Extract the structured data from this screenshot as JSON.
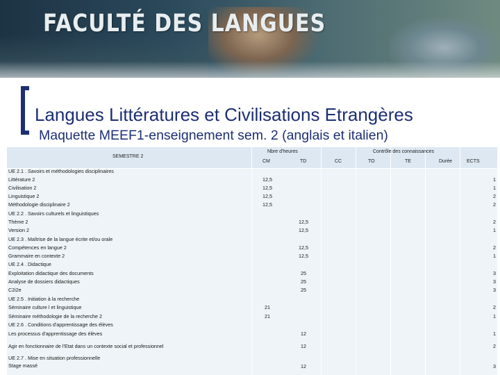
{
  "banner": {
    "logo_text": "FACULTÉ DES LANGUES"
  },
  "title": "Langues Littératures et Civilisations Etrangères",
  "subtitle": "Maquette MEEF1-enseignement sem. 2 (anglais et italien)",
  "table": {
    "headers": {
      "semestre": "SEMESTRE 2",
      "nbre_heures": "Nbre d'heures",
      "cm": "CM",
      "td": "TD",
      "cc": "CC",
      "controle": "Contrôle des connaissances",
      "ct_to": "TO",
      "ct_te": "TE",
      "duree": "Durée",
      "ects": "ECTS"
    },
    "rows": [
      {
        "label": "UE 2.1 . Savoirs et méthodologies disciplinaires",
        "cm": "",
        "td": "",
        "ects": ""
      },
      {
        "label": "Littérature 2",
        "cm": "12,5",
        "td": "",
        "ects": "1"
      },
      {
        "label": "Civilisation 2",
        "cm": "12,5",
        "td": "",
        "ects": "1"
      },
      {
        "label": "Linguistique 2",
        "cm": "12,5",
        "td": "",
        "ects": "2"
      },
      {
        "label": "Méthodologie disciplinaire 2",
        "cm": "12,5",
        "td": "",
        "ects": "2"
      },
      {
        "label": "UE 2.2 . Savoirs culturels et linguistiques",
        "cm": "",
        "td": "",
        "ects": ""
      },
      {
        "label": "Thème 2",
        "cm": "",
        "td": "12,5",
        "ects": "2"
      },
      {
        "label": "Version 2",
        "cm": "",
        "td": "12,5",
        "ects": "1"
      },
      {
        "label": "UE 2.3 . Maîtrise de la langue écrite et/ou orale",
        "cm": "",
        "td": "",
        "ects": ""
      },
      {
        "label": "Compétences en langue 2",
        "cm": "",
        "td": "12,5",
        "ects": "2"
      },
      {
        "label": "Grammaire en contexte 2",
        "cm": "",
        "td": "12,5",
        "ects": "1"
      },
      {
        "label": "UE 2.4 . Didactique",
        "cm": "",
        "td": "",
        "ects": ""
      },
      {
        "label": "Exploitation didactique des documents",
        "cm": "",
        "td": "25",
        "ects": "3"
      },
      {
        "label": "Analyse de dossiers didactiques",
        "cm": "",
        "td": "25",
        "ects": "3"
      },
      {
        "label": "C2i2e",
        "cm": "",
        "td": "25",
        "ects": "3"
      },
      {
        "label": "UE 2.5 . Initiation à la recherche",
        "cm": "",
        "td": "",
        "ects": ""
      },
      {
        "label": "Séminaire culture l et linguistique",
        "cm": "21",
        "td": "",
        "ects": "2"
      },
      {
        "label": "Séminaire méthodologie de la recherche 2",
        "cm": "21",
        "td": "",
        "ects": "1"
      },
      {
        "label": "UE 2.6 . Conditions d'apprentissage des élèves",
        "cm": "",
        "td": "",
        "ects": ""
      },
      {
        "label": "Les processus d'apprentissage des élèves",
        "cm": "",
        "td": "12",
        "ects": "1"
      },
      {
        "label": "Agir en fonctionnaire de l'Etat dans un contexte social et professionnel",
        "cm": "",
        "td": "12",
        "ects": "2"
      },
      {
        "label": "UE 2.7 . Mise en situation professionnelle",
        "cm": "",
        "td": "",
        "ects": ""
      },
      {
        "label": "Stage massé",
        "cm": "",
        "td": "12",
        "ects": "3"
      }
    ]
  }
}
